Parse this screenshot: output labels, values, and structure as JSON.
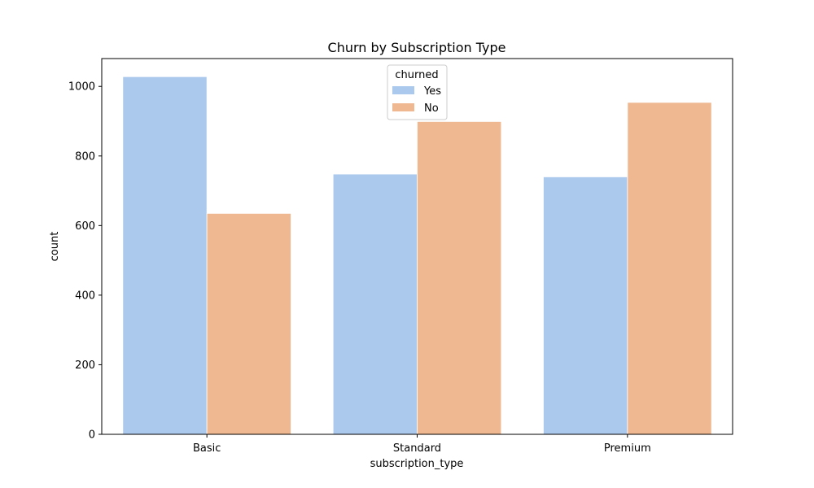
{
  "chart_data": {
    "type": "bar",
    "title": "Churn by Subscription Type",
    "xlabel": "subscription_type",
    "ylabel": "count",
    "categories": [
      "Basic",
      "Standard",
      "Premium"
    ],
    "series": [
      {
        "name": "Yes",
        "values": [
          1028,
          748,
          740
        ],
        "color": "#abc9ed"
      },
      {
        "name": "No",
        "values": [
          635,
          899,
          954
        ],
        "color": "#f0b891"
      }
    ],
    "ylim": [
      0,
      1080
    ],
    "yticks": [
      0,
      200,
      400,
      600,
      800,
      1000
    ],
    "grid": false,
    "legend": {
      "title": "churned",
      "placement": "top-center"
    }
  }
}
